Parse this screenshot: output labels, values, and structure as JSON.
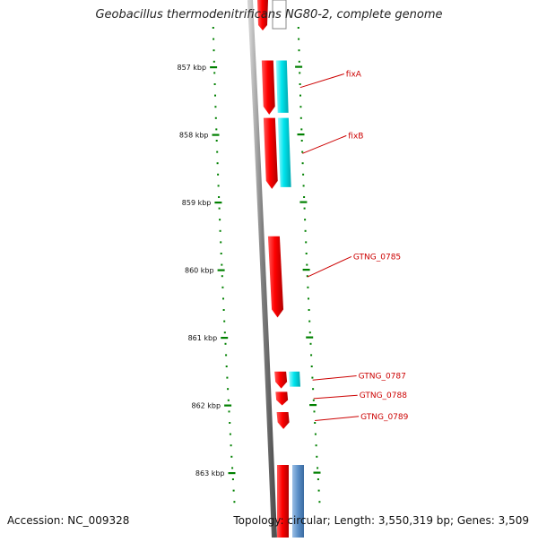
{
  "title": "Geobacillus thermodenitrificans NG80-2, complete genome",
  "accession": "Accession: NC_009328",
  "summary": "Topology: circular; Length: 3,550,319 bp; Genes: 3,509",
  "ticks": [
    {
      "label": "857 kbp",
      "kbp": 857
    },
    {
      "label": "858 kbp",
      "kbp": 858
    },
    {
      "label": "859 kbp",
      "kbp": 859
    },
    {
      "label": "860 kbp",
      "kbp": 860
    },
    {
      "label": "861 kbp",
      "kbp": 861
    },
    {
      "label": "862 kbp",
      "kbp": 862
    },
    {
      "label": "863 kbp",
      "kbp": 863
    }
  ],
  "genes": [
    {
      "label": "fixA",
      "start_kbp": 856.9,
      "end_kbp": 857.7,
      "color": "#ff0000",
      "partner_color": "#00e5ee"
    },
    {
      "label": "fixB",
      "start_kbp": 857.75,
      "end_kbp": 858.8,
      "color": "#ff0000",
      "partner_color": "#00e5ee"
    },
    {
      "label": "GTNG_0785",
      "start_kbp": 859.5,
      "end_kbp": 860.7,
      "color": "#ff0000",
      "partner_color": ""
    },
    {
      "label": "GTNG_0787",
      "start_kbp": 861.5,
      "end_kbp": 861.75,
      "color": "#ff0000",
      "partner_color": "#00e5ee"
    },
    {
      "label": "GTNG_0788",
      "start_kbp": 861.8,
      "end_kbp": 862.0,
      "color": "#ff0000",
      "partner_color": ""
    },
    {
      "label": "GTNG_0789",
      "start_kbp": 862.1,
      "end_kbp": 862.35,
      "color": "#ff0000",
      "partner_color": ""
    }
  ],
  "bottom_genes": [
    {
      "color": "#ff0000"
    },
    {
      "color": "#5b8fc7"
    }
  ],
  "colors": {
    "label_red": "#cc0000",
    "tick_green": "#008000",
    "backbone_gray": "#808080",
    "forward_red": "#ff0000",
    "reverse_cyan": "#00e5ee",
    "steel_blue": "#5b8fc7"
  }
}
